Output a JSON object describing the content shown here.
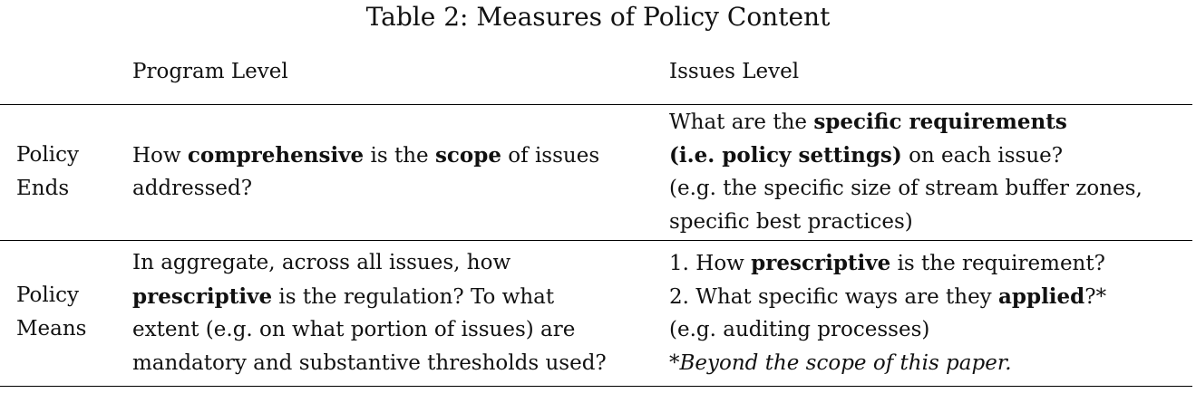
{
  "caption": "Table 2: Measures of Policy Content",
  "headers": {
    "program": "Program Level",
    "issues": "Issues Level"
  },
  "rows": [
    {
      "label": [
        "Policy",
        "Ends"
      ],
      "program": [
        [
          {
            "t": "How ",
            "b": false
          },
          {
            "t": "comprehensive",
            "b": true
          },
          {
            "t": " is the ",
            "b": false
          },
          {
            "t": "scope",
            "b": true
          },
          {
            "t": " of issues",
            "b": false
          }
        ],
        [
          {
            "t": "addressed?",
            "b": false
          }
        ]
      ],
      "issues": [
        [
          {
            "t": "What are the ",
            "b": false
          },
          {
            "t": "specific requirements",
            "b": true
          }
        ],
        [
          {
            "t": "(i.e. policy settings)",
            "b": true
          },
          {
            "t": " on each issue?",
            "b": false
          }
        ],
        [
          {
            "t": "(e.g. the specific size of stream buffer zones,",
            "b": false
          }
        ],
        [
          {
            "t": "specific best practices)",
            "b": false
          }
        ]
      ]
    },
    {
      "label": [
        "Policy",
        "Means"
      ],
      "program": [
        [
          {
            "t": "In aggregate, across all issues, how",
            "b": false
          }
        ],
        [
          {
            "t": "prescriptive",
            "b": true
          },
          {
            "t": " is the regulation? To what",
            "b": false
          }
        ],
        [
          {
            "t": "extent (e.g. on what portion of issues) are",
            "b": false
          }
        ],
        [
          {
            "t": "mandatory and substantive thresholds used?",
            "b": false
          }
        ]
      ],
      "issues": [
        [
          {
            "t": "1. How ",
            "b": false
          },
          {
            "t": "prescriptive",
            "b": true
          },
          {
            "t": " is the requirement?",
            "b": false
          }
        ],
        [
          {
            "t": "2. What specific ways are they ",
            "b": false
          },
          {
            "t": "applied",
            "b": true
          },
          {
            "t": "?*",
            "b": false
          }
        ],
        [
          {
            "t": "(e.g. auditing processes)",
            "b": false
          }
        ],
        [
          {
            "t": "*Beyond the scope of this paper.",
            "b": false,
            "i": true
          }
        ]
      ]
    }
  ]
}
